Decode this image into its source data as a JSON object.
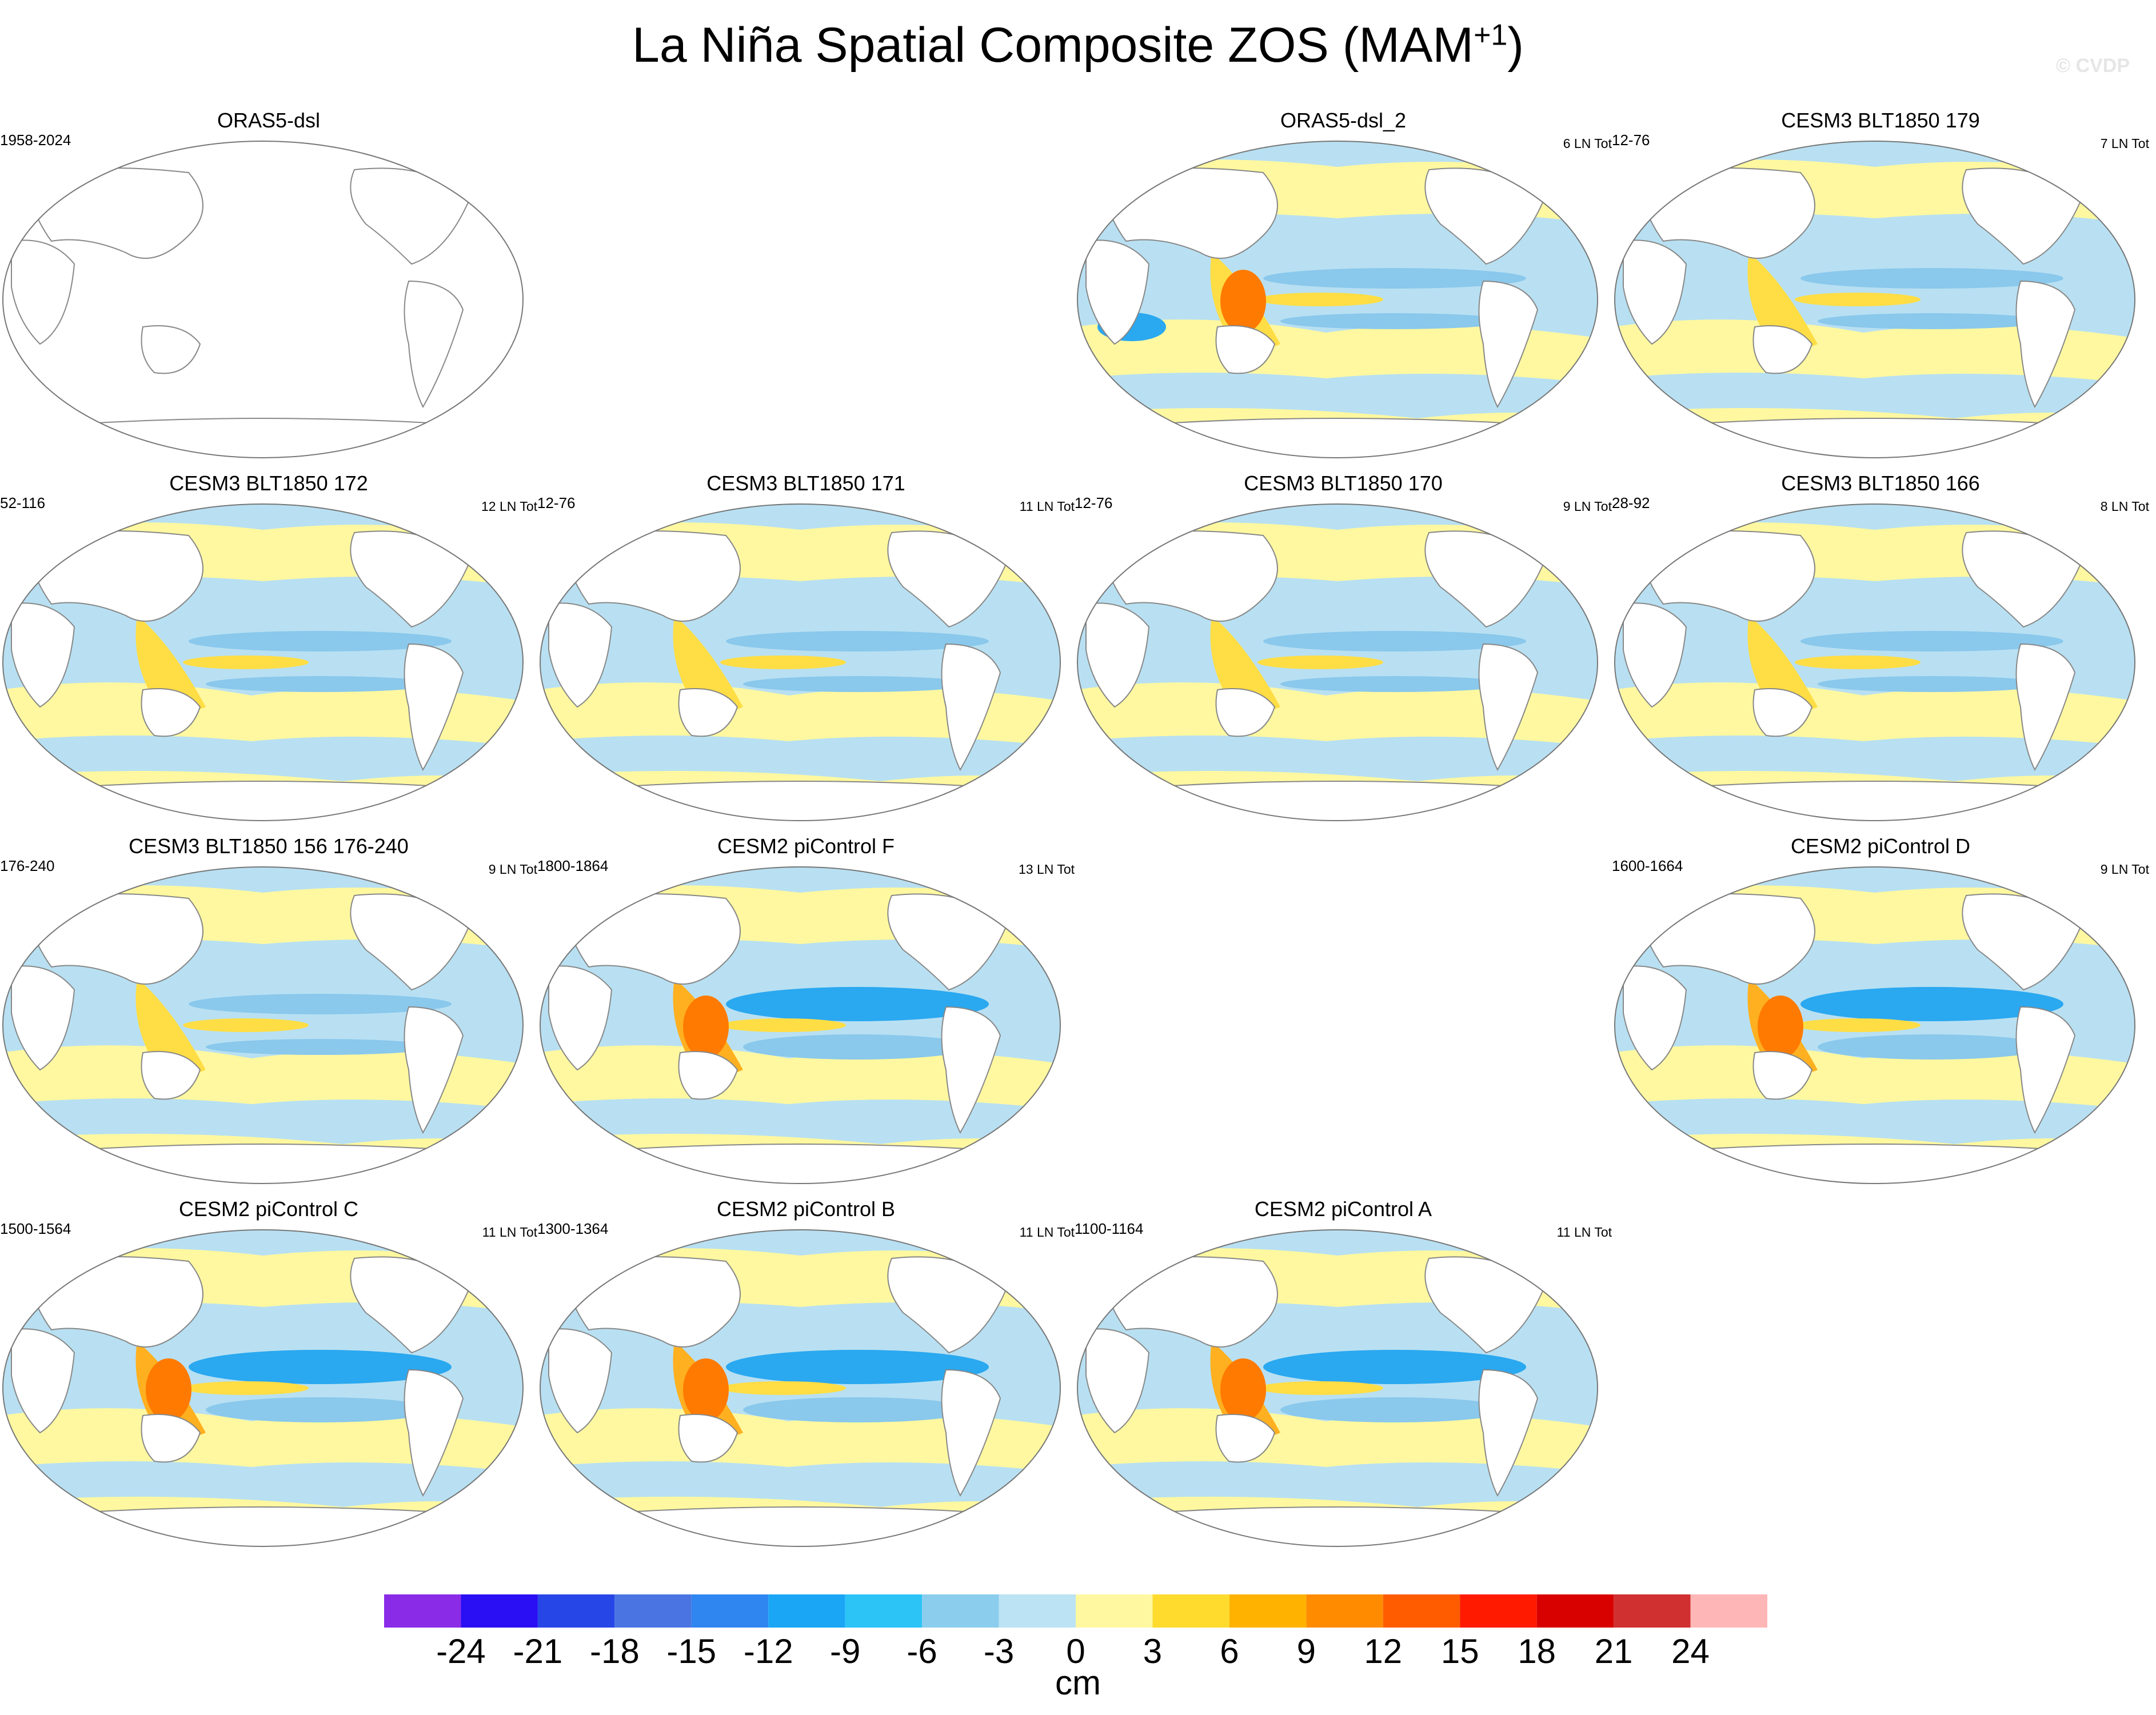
{
  "title": {
    "main": "La Niña Spatial Composite ZOS (MAM",
    "superscript": "+1",
    "close": ")"
  },
  "watermark": "© CVDP",
  "colors": {
    "ocean_neg": "#b8e0f2",
    "ocean_pos": "#fff8a0",
    "band_blue": "#8ac8ec",
    "band_blue_strong": "#2aa8f0",
    "band_yellow": "#ffdd44",
    "band_orange": "#ffb020",
    "band_red": "#ff7a00",
    "land": "#ffffff",
    "coast": "#888888"
  },
  "panels": [
    {
      "title": "ORAS5-dsl",
      "left": "1958-2024",
      "right": "",
      "style": "empty"
    },
    {
      "title": "ORAS5-dsl_2",
      "left": "",
      "right": "6 LN Tot",
      "style": "reanalysis"
    },
    {
      "title": "CESM3 BLT1850 179",
      "left": "12-76",
      "right": "7 LN Tot",
      "style": "weak"
    },
    {
      "title": "CESM3 BLT1850 172",
      "left": "52-116",
      "right": "12 LN Tot",
      "style": "weak"
    },
    {
      "title": "CESM3 BLT1850 171",
      "left": "12-76",
      "right": "11 LN Tot",
      "style": "weak"
    },
    {
      "title": "CESM3 BLT1850 170",
      "left": "12-76",
      "right": "9 LN Tot",
      "style": "weak"
    },
    {
      "title": "CESM3 BLT1850 166",
      "left": "28-92",
      "right": "8 LN Tot",
      "style": "weak"
    },
    {
      "title": "CESM3 BLT1850 156 176-240",
      "left": "176-240",
      "right": "9 LN Tot",
      "style": "weak"
    },
    {
      "title": "CESM2 piControl F",
      "left": "1800-1864",
      "right": "13 LN Tot",
      "style": "strong"
    },
    {
      "title": "CESM2 piControl D",
      "left": "1600-1664",
      "right": "9 LN Tot",
      "style": "strong"
    },
    {
      "title": "CESM2 piControl C",
      "left": "1500-1564",
      "right": "11 LN Tot",
      "style": "strong"
    },
    {
      "title": "CESM2 piControl B",
      "left": "1300-1364",
      "right": "11 LN Tot",
      "style": "strong"
    },
    {
      "title": "CESM2 piControl A",
      "left": "1100-1164",
      "right": "11 LN Tot",
      "style": "strong"
    }
  ],
  "chart_data": {
    "type": "heatmap",
    "title": "La Niña Spatial Composite ZOS (MAM+1)",
    "variable": "ZOS",
    "season": "MAM+1",
    "units": "cm",
    "projection": "Robinson, Pacific-centered",
    "colorbar": {
      "levels": [
        -24,
        -21,
        -18,
        -15,
        -12,
        -9,
        -6,
        -3,
        0,
        3,
        6,
        9,
        12,
        15,
        18,
        21,
        24
      ],
      "colors": [
        "#8a2be8",
        "#2a0ef4",
        "#2646e8",
        "#4a74e2",
        "#2f86f0",
        "#1aa6f5",
        "#2cc3f7",
        "#8acdec",
        "#bce3f3",
        "#fff8a0",
        "#ffdb2e",
        "#ffb300",
        "#ff8c00",
        "#ff5c00",
        "#ff1a00",
        "#d90000",
        "#d03030",
        "#ffb6b6"
      ]
    },
    "maps": [
      {
        "name": "ORAS5-dsl",
        "years": "1958-2024",
        "events": null
      },
      {
        "name": "ORAS5-dsl_2",
        "years": null,
        "events": 6
      },
      {
        "name": "CESM3 BLT1850 179",
        "years": "12-76",
        "events": 7
      },
      {
        "name": "CESM3 BLT1850 172",
        "years": "52-116",
        "events": 12
      },
      {
        "name": "CESM3 BLT1850 171",
        "years": "12-76",
        "events": 11
      },
      {
        "name": "CESM3 BLT1850 170",
        "years": "12-76",
        "events": 9
      },
      {
        "name": "CESM3 BLT1850 166",
        "years": "28-92",
        "events": 8
      },
      {
        "name": "CESM3 BLT1850 156",
        "years": "176-240",
        "events": 9
      },
      {
        "name": "CESM2 piControl F",
        "years": "1800-1864",
        "events": 13
      },
      {
        "name": "CESM2 piControl D",
        "years": "1600-1664",
        "events": 9
      },
      {
        "name": "CESM2 piControl C",
        "years": "1500-1564",
        "events": 11
      },
      {
        "name": "CESM2 piControl B",
        "years": "1300-1364",
        "events": 11
      },
      {
        "name": "CESM2 piControl A",
        "years": "1100-1164",
        "events": 11
      }
    ]
  }
}
